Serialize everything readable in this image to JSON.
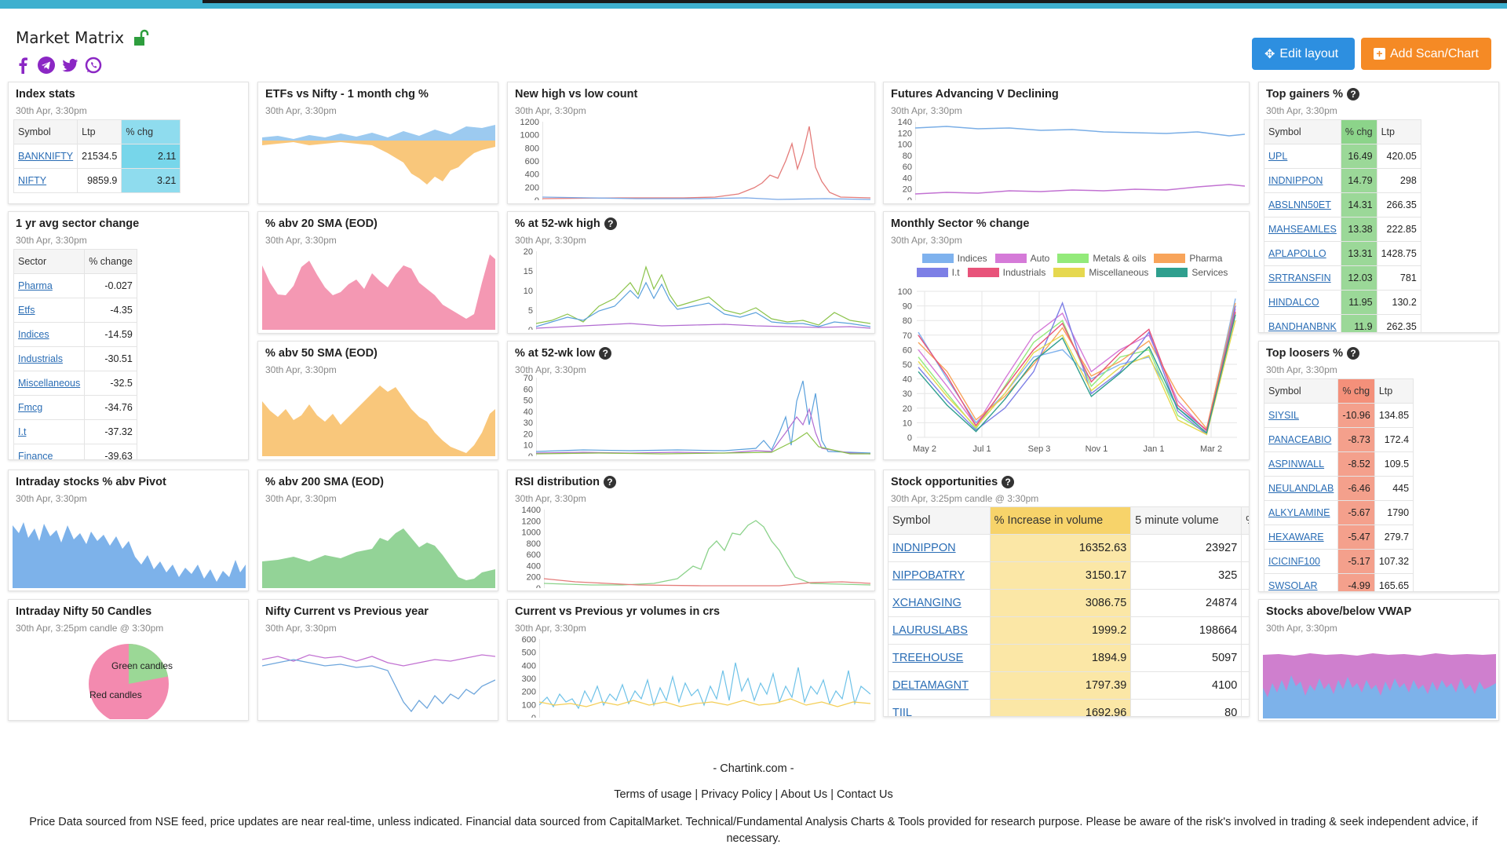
{
  "app_title": "Market Matrix",
  "buttons": {
    "edit": "Edit layout",
    "add": "Add Scan/Chart"
  },
  "ts": "30th Apr, 3:30pm",
  "ts_candle": "30th Apr, 3:25pm candle @ 3:30pm",
  "index_stats": {
    "title": "Index stats",
    "cols": [
      "Symbol",
      "Ltp",
      "% chg"
    ],
    "rows": [
      [
        "BANKNIFTY",
        "21534.5",
        "2.11"
      ],
      [
        "NIFTY",
        "9859.9",
        "3.21"
      ]
    ]
  },
  "sector": {
    "title": "1 yr avg sector change",
    "cols": [
      "Sector",
      "% change"
    ],
    "rows": [
      [
        "Pharma",
        "-0.027"
      ],
      [
        "Etfs",
        "-4.35"
      ],
      [
        "Indices",
        "-14.59"
      ],
      [
        "Industrials",
        "-30.51"
      ],
      [
        "Miscellaneous",
        "-32.5"
      ],
      [
        "Fmcg",
        "-34.76"
      ],
      [
        "I.t",
        "-37.32"
      ],
      [
        "Finance",
        "-39.63"
      ]
    ]
  },
  "gainers": {
    "title": "Top gainers %",
    "cols": [
      "Symbol",
      "% chg",
      "Ltp"
    ],
    "rows": [
      [
        "UPL",
        "16.49",
        "420.05"
      ],
      [
        "INDNIPPON",
        "14.79",
        "298"
      ],
      [
        "ABSLNN50ET",
        "14.31",
        "266.35"
      ],
      [
        "MAHSEAMLES",
        "13.38",
        "222.85"
      ],
      [
        "APLAPOLLO",
        "13.31",
        "1428.75"
      ],
      [
        "SRTRANSFIN",
        "12.03",
        "781"
      ],
      [
        "HINDALCO",
        "11.95",
        "130.2"
      ],
      [
        "BANDHANBNK",
        "11.9",
        "262.35"
      ]
    ]
  },
  "losers": {
    "title": "Top loosers %",
    "cols": [
      "Symbol",
      "% chg",
      "Ltp"
    ],
    "rows": [
      [
        "SIYSIL",
        "-10.96",
        "134.85"
      ],
      [
        "PANACEABIO",
        "-8.73",
        "172.4"
      ],
      [
        "ASPINWALL",
        "-8.52",
        "109.5"
      ],
      [
        "NEULANDLAB",
        "-6.46",
        "445"
      ],
      [
        "ALKYLAMINE",
        "-5.67",
        "1790"
      ],
      [
        "HEXAWARE",
        "-5.47",
        "279.7"
      ],
      [
        "ICICINF100",
        "-5.17",
        "107.32"
      ],
      [
        "SWSOLAR",
        "-4.99",
        "165.65"
      ]
    ]
  },
  "opps": {
    "title": "Stock opportunities",
    "cols": [
      "Symbol",
      "% Increase in volume",
      "5 minute volume",
      "%"
    ],
    "rows": [
      [
        "INDNIPPON",
        "16352.63",
        "23927"
      ],
      [
        "NIPPOBATRY",
        "3150.17",
        "325"
      ],
      [
        "XCHANGING",
        "3086.75",
        "24874"
      ],
      [
        "LAURUSLABS",
        "1999.2",
        "198664"
      ],
      [
        "TREEHOUSE",
        "1894.9",
        "5097"
      ],
      [
        "DELTAMAGNT",
        "1797.39",
        "4100"
      ],
      [
        "TIIL",
        "1692.96",
        "80"
      ]
    ]
  },
  "titles": {
    "etf": "ETFs vs Nifty - 1 month chg %",
    "nh": "New high vs low count",
    "fut": "Futures Advancing V Declining",
    "sma20": "% abv 20 SMA (EOD)",
    "h52": "% at 52-wk high",
    "monthly": "Monthly Sector % change",
    "sma50": "% abv 50 SMA (EOD)",
    "l52": "% at 52-wk low",
    "pivot": "Intraday stocks % abv Pivot",
    "sma200": "% abv 200 SMA (EOD)",
    "rsi": "RSI distribution",
    "candles": "Intraday Nifty 50 Candles",
    "nvp": "Nifty Current vs Previous year",
    "vol": "Current vs Previous yr volumes in crs",
    "vwap": "Stocks above/below VWAP"
  },
  "candles_labels": {
    "green": "Green candles",
    "red": "Red candles"
  },
  "footer": {
    "brand": "- Chartink.com -",
    "links": [
      "Terms of usage",
      "Privacy Policy",
      "About Us",
      "Contact Us"
    ],
    "sep": "|",
    "disclaimer": "Price Data sourced from NSE feed, price updates are near real-time, unless indicated. Financial data sourced from CapitalMarket. Technical/Fundamental Analysis Charts & Tools provided for research purpose. Please be aware of the risk's involved in trading & seek independent advice, if necessary."
  },
  "chart_data": [
    {
      "type": "line",
      "title": "New high vs low count",
      "ylim": [
        0,
        1200
      ],
      "yticks": [
        "1200",
        "1000",
        "800",
        "600",
        "400",
        "200",
        "0"
      ]
    },
    {
      "type": "line",
      "title": "Futures Advancing V Declining",
      "ylim": [
        0,
        140
      ],
      "yticks": [
        "140",
        "120",
        "100",
        "80",
        "60",
        "40",
        "20",
        "0"
      ]
    },
    {
      "type": "line",
      "title": "% at 52-wk high",
      "ylim": [
        0,
        20
      ],
      "yticks": [
        "20",
        "15",
        "10",
        "5",
        "0"
      ]
    },
    {
      "type": "line",
      "title": "% at 52-wk low",
      "ylim": [
        0,
        70
      ],
      "yticks": [
        "70",
        "60",
        "50",
        "40",
        "30",
        "20",
        "10",
        "0"
      ]
    },
    {
      "type": "line",
      "title": "RSI distribution",
      "ylim": [
        0,
        1400
      ],
      "yticks": [
        "1400",
        "1200",
        "1000",
        "800",
        "600",
        "400",
        "200",
        "0"
      ]
    },
    {
      "type": "line",
      "title": "Current vs Previous yr volumes in crs",
      "ylim": [
        0,
        600
      ],
      "yticks": [
        "600",
        "500",
        "400",
        "300",
        "200",
        "100",
        "0"
      ]
    },
    {
      "type": "line",
      "title": "Monthly Sector % change",
      "ylim": [
        0,
        100
      ],
      "yticks": [
        "100",
        "90",
        "80",
        "70",
        "60",
        "50",
        "40",
        "30",
        "20",
        "10",
        "0"
      ],
      "xticks": [
        "May 2",
        "Jul 1",
        "Sep 3",
        "Nov 1",
        "Jan 1",
        "Mar 2"
      ],
      "legend": [
        {
          "name": "Indices",
          "color": "#7fb2ee"
        },
        {
          "name": "Auto",
          "color": "#d57ad8"
        },
        {
          "name": "Metals & oils",
          "color": "#93ea7a"
        },
        {
          "name": "Pharma",
          "color": "#f8a45a"
        },
        {
          "name": "I.t",
          "color": "#7d7fe6"
        },
        {
          "name": "Industrials",
          "color": "#e8537a"
        },
        {
          "name": "Miscellaneous",
          "color": "#e6d84f"
        },
        {
          "name": "Services",
          "color": "#2f9f8e"
        }
      ]
    },
    {
      "type": "pie",
      "title": "Intraday Nifty 50 Candles",
      "slices": [
        {
          "name": "Green candles",
          "value": 22
        },
        {
          "name": "Red candles",
          "value": 78
        }
      ]
    }
  ]
}
